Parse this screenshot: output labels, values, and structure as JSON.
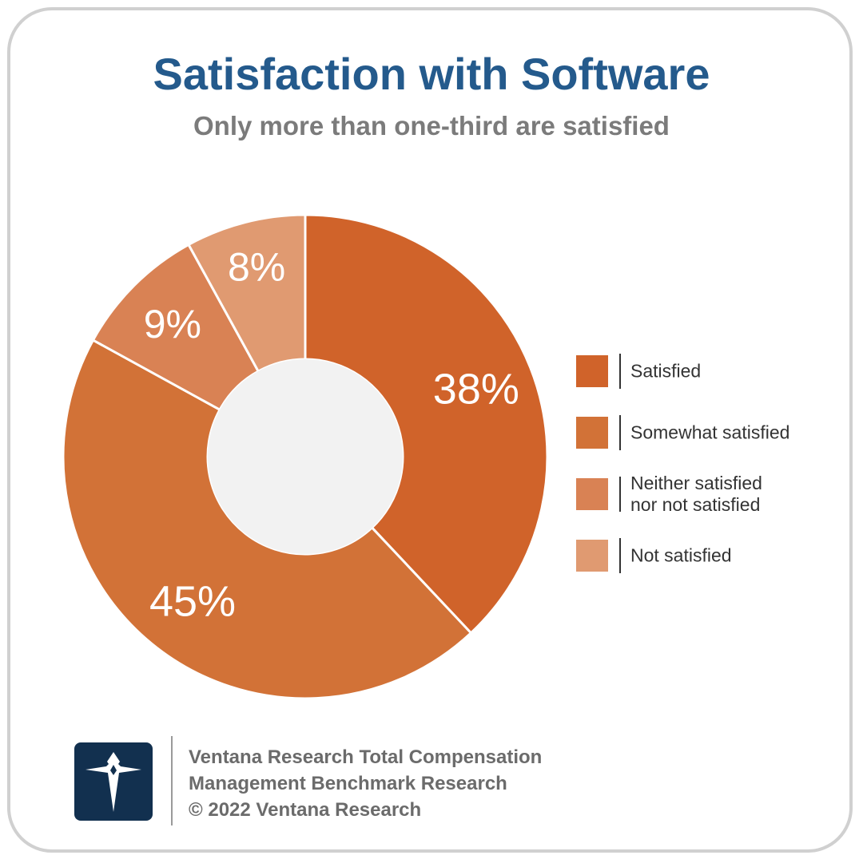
{
  "title": "Satisfaction with Software",
  "subtitle": "Only more than one-third are satisfied",
  "chart_data": {
    "type": "pie",
    "categories": [
      "Satisfied",
      "Somewhat satisfied",
      "Neither satisfied nor not satisfied",
      "Not satisfied"
    ],
    "values": [
      38,
      45,
      9,
      8
    ],
    "value_labels": [
      "38%",
      "45%",
      "9%",
      "8%"
    ],
    "colors": [
      "#d0632a",
      "#d27237",
      "#d98254",
      "#e09a71"
    ],
    "legend_placement": "right",
    "donut": true
  },
  "legend": {
    "items": [
      {
        "label": "Satisfied",
        "color": "#d0632a"
      },
      {
        "label": "Somewhat satisfied",
        "color": "#d27237"
      },
      {
        "label": "Neither satisfied\nnor not satisfied",
        "color": "#d98254"
      },
      {
        "label": "Not satisfied",
        "color": "#e09a71"
      }
    ]
  },
  "footer": {
    "line1": "Ventana Research Total Compensation",
    "line2": "Management Benchmark Research",
    "line3": "© 2022 Ventana Research",
    "logo_icon": "ventana-v-logo-icon",
    "logo_color": "#12304f"
  }
}
